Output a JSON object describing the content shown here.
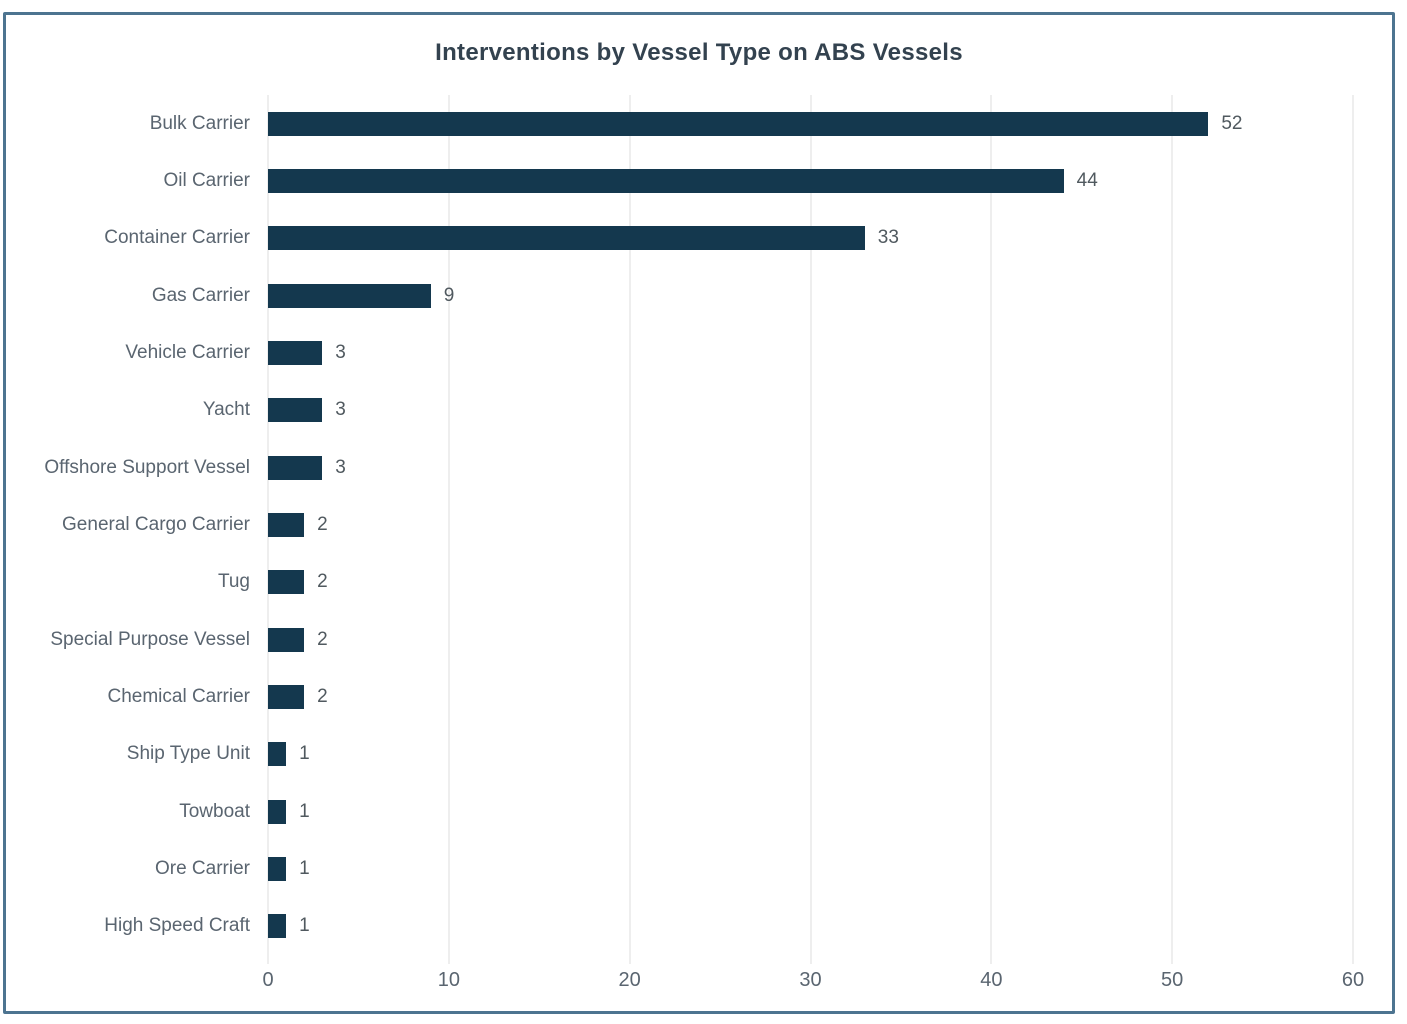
{
  "chart_data": {
    "type": "bar",
    "orientation": "horizontal",
    "title": "Interventions by Vessel Type on ABS Vessels",
    "categories": [
      "Bulk Carrier",
      "Oil Carrier",
      "Container Carrier",
      "Gas Carrier",
      "Vehicle Carrier",
      "Yacht",
      "Offshore Support Vessel",
      "General Cargo Carrier",
      "Tug",
      "Special Purpose Vessel",
      "Chemical Carrier",
      "Ship Type Unit",
      "Towboat",
      "Ore Carrier",
      "High Speed Craft"
    ],
    "values": [
      52,
      44,
      33,
      9,
      3,
      3,
      3,
      2,
      2,
      2,
      2,
      1,
      1,
      1,
      1
    ],
    "xlabel": "",
    "ylabel": "",
    "xlim": [
      0,
      60
    ],
    "x_ticks": [
      0,
      10,
      20,
      30,
      40,
      50,
      60
    ],
    "grid": true,
    "data_labels": true,
    "legend": "none",
    "colors": {
      "bar": "#14384e",
      "gridline": "#dcdcdc",
      "axis_label": "#5a6570",
      "value_label": "#50595f",
      "title": "#33424f",
      "frame_border": "#4d7490",
      "background": "#ffffff"
    }
  }
}
